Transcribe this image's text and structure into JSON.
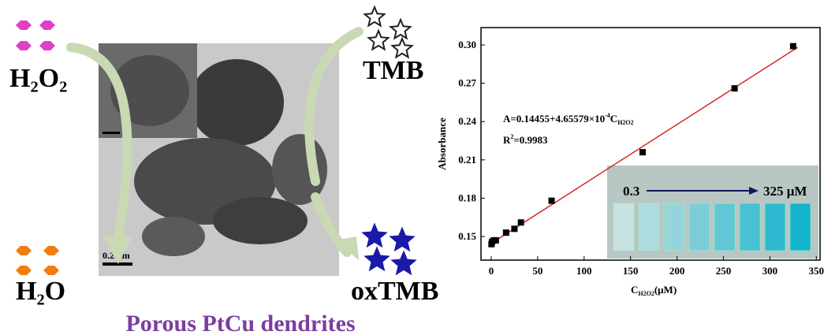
{
  "diagram": {
    "title": "Porous PtCu dendrites",
    "h2o2": "H₂O₂",
    "tmb": "TMB",
    "h2o": "H₂O",
    "oxtmb": "oxTMB",
    "scale_bar": "0.2 μm"
  },
  "chart_data": {
    "type": "scatter",
    "y_label": "Absorbance",
    "x_label": {
      "main": "C",
      "sub": "H2O2",
      "unit": "(μM)"
    },
    "equation": {
      "lead": "A=0.14455+4.65579×10",
      "sup": "-4",
      "c": "C",
      "sub": "H2O2"
    },
    "r2": {
      "r": "R",
      "sup": "2",
      "rest": "=0.9983"
    },
    "inset": {
      "start": "0.3",
      "end": "325 μM"
    },
    "x": [
      0.3,
      1,
      3,
      5,
      16,
      25,
      32,
      65,
      163,
      262,
      325
    ],
    "series": [
      {
        "name": "Absorbance",
        "color": "#000000",
        "values": [
          0.144,
          0.146,
          0.147,
          0.147,
          0.153,
          0.156,
          0.161,
          0.178,
          0.216,
          0.266,
          0.299
        ]
      },
      {
        "name": "Fit",
        "color": "#d62728",
        "x": [
          0,
          330
        ],
        "values": [
          0.1446,
          0.2982
        ]
      }
    ],
    "xlim": [
      -11,
      354
    ],
    "ylim": [
      0.1315,
      0.3136
    ],
    "xticks": [
      0,
      50,
      100,
      150,
      200,
      250,
      300,
      350
    ],
    "yticks": [
      {
        "value": 0.15,
        "label": "0.15"
      },
      {
        "value": 0.18,
        "label": "0.18"
      },
      {
        "value": 0.21,
        "label": "0.21"
      },
      {
        "value": 0.24,
        "label": "0.24"
      },
      {
        "value": 0.27,
        "label": "0.27"
      },
      {
        "value": 0.3,
        "label": "0.30"
      }
    ]
  }
}
